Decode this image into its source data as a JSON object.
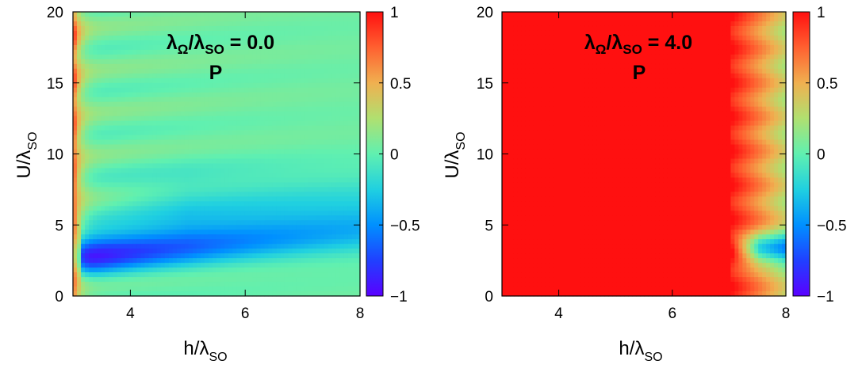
{
  "chart_data": [
    {
      "type": "heatmap",
      "title": "λΩ/λSO = 0.0",
      "title_main": "λ",
      "title_sub1": "Ω",
      "title_mid": "/λ",
      "title_sub2": "SO",
      "title_value": " = 0.0",
      "subtitle": "P",
      "xlabel": "h/λSO",
      "xlabel_main": "h/λ",
      "xlabel_sub": "SO",
      "ylabel": "U/λSO",
      "ylabel_main": "U/λ",
      "ylabel_sub": "SO",
      "xlim": [
        3,
        8
      ],
      "ylim": [
        0,
        20
      ],
      "zlim": [
        -1,
        1
      ],
      "xticks": [
        "4",
        "6",
        "8"
      ],
      "xtick_values": [
        4,
        6,
        8
      ],
      "yticks": [
        "0",
        "5",
        "10",
        "15",
        "20"
      ],
      "ytick_values": [
        0,
        5,
        10,
        15,
        20
      ],
      "colorbar_ticks": [
        "−1",
        "−0.5",
        "0",
        "0.5",
        "1"
      ],
      "colorbar_values": [
        -1,
        -0.5,
        0,
        0.5,
        1
      ],
      "features": {
        "background": 0.05,
        "red_columns_near_x": 3.0,
        "blue_minimum": {
          "x": 3.4,
          "y": 3.0,
          "value": -0.95
        },
        "oscillation_stripes": "decreasing bands from left edge to right"
      }
    },
    {
      "type": "heatmap",
      "title": "λΩ/λSO = 4.0",
      "title_main": "λ",
      "title_sub1": "Ω",
      "title_mid": "/λ",
      "title_sub2": "SO",
      "title_value": " = 4.0",
      "subtitle": "P",
      "xlabel": "h/λSO",
      "xlabel_main": "h/λ",
      "xlabel_sub": "SO",
      "ylabel": "U/λSO",
      "ylabel_main": "U/λ",
      "ylabel_sub": "SO",
      "xlim": [
        3,
        8
      ],
      "ylim": [
        0,
        20
      ],
      "zlim": [
        -1,
        1
      ],
      "xticks": [
        "4",
        "6",
        "8"
      ],
      "xtick_values": [
        4,
        6,
        8
      ],
      "yticks": [
        "0",
        "5",
        "10",
        "15",
        "20"
      ],
      "ytick_values": [
        0,
        5,
        10,
        15,
        20
      ],
      "colorbar_ticks": [
        "−1",
        "−0.5",
        "0",
        "0.5",
        "1"
      ],
      "colorbar_values": [
        -1,
        -0.5,
        0,
        0.5,
        1
      ],
      "features": {
        "red_region_x": [
          3,
          7.05
        ],
        "transition_x": 7.05,
        "blue_minimum": {
          "x": 7.6,
          "y": 3.3,
          "value": -0.6
        }
      }
    }
  ]
}
